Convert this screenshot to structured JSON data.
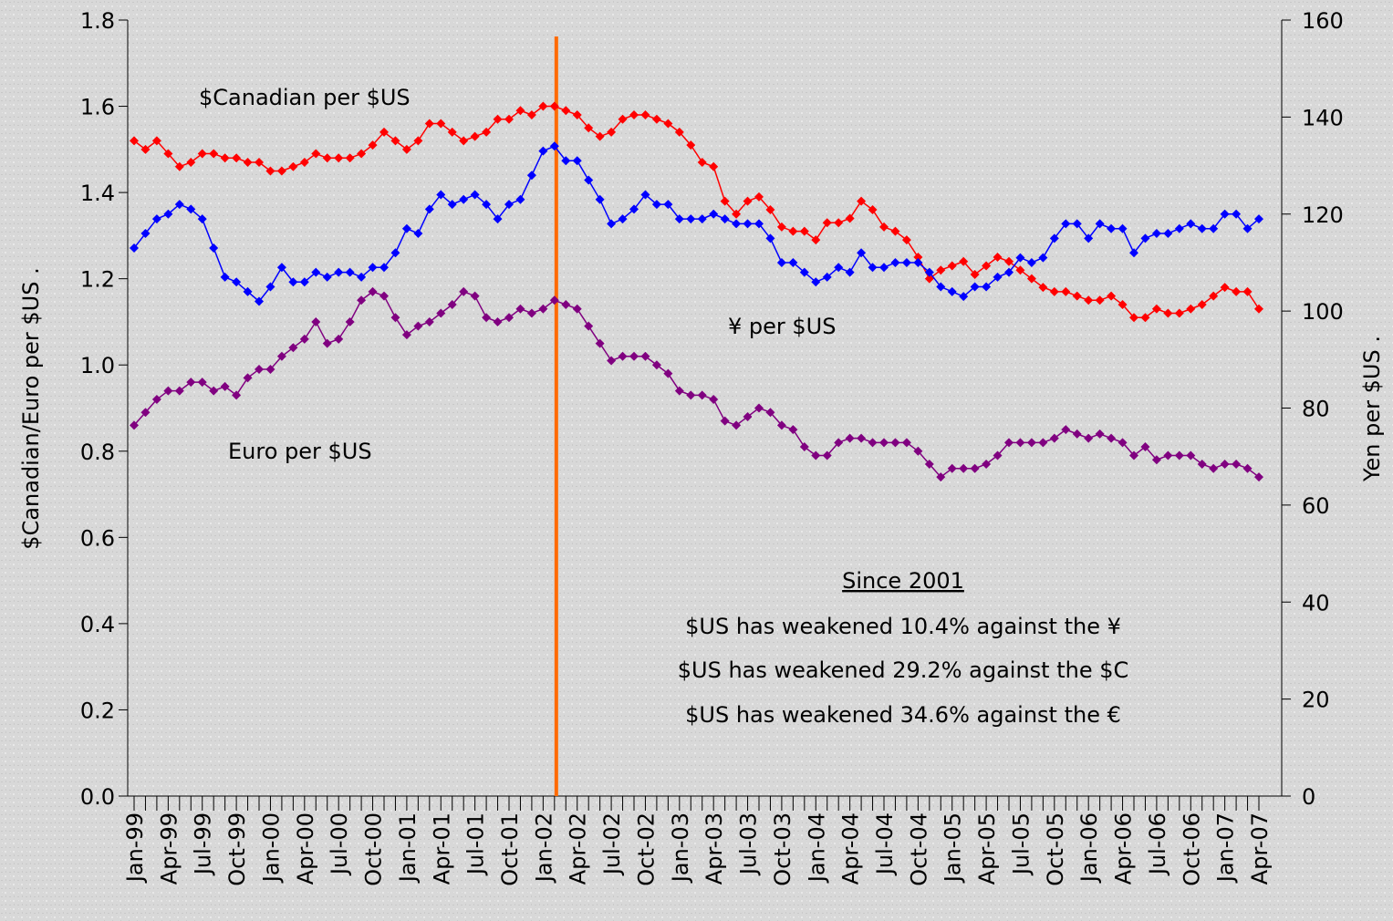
{
  "chart_data": {
    "type": "line",
    "y_label": "$Canadian/Euro per $US .",
    "y2_label": "Yen per $US .",
    "categories": [
      "Jan-99",
      null,
      null,
      "Apr-99",
      null,
      null,
      "Jul-99",
      null,
      null,
      "Oct-99",
      null,
      null,
      "Jan-00",
      null,
      null,
      "Apr-00",
      null,
      null,
      "Jul-00",
      null,
      null,
      "Oct-00",
      null,
      null,
      "Jan-01",
      null,
      null,
      "Apr-01",
      null,
      null,
      "Jul-01",
      null,
      null,
      "Oct-01",
      null,
      null,
      "Jan-02",
      null,
      null,
      "Apr-02",
      null,
      null,
      "Jul-02",
      null,
      null,
      "Oct-02",
      null,
      null,
      "Jan-03",
      null,
      null,
      "Apr-03",
      null,
      null,
      "Jul-03",
      null,
      null,
      "Oct-03",
      null,
      null,
      "Jan-04",
      null,
      null,
      "Apr-04",
      null,
      null,
      "Jul-04",
      null,
      null,
      "Oct-04",
      null,
      null,
      "Jan-05",
      null,
      null,
      "Apr-05",
      null,
      null,
      "Jul-05",
      null,
      null,
      "Oct-05",
      null,
      null,
      "Jan-06",
      null,
      null,
      "Apr-06",
      null,
      null,
      "Jul-06",
      null,
      null,
      "Oct-06",
      null,
      null,
      "Jan-07",
      null,
      null,
      "Apr-07"
    ],
    "series": [
      {
        "name": "$Canadian per $US",
        "color": "#ff0000",
        "values": [
          1.52,
          1.5,
          1.52,
          1.49,
          1.46,
          1.47,
          1.49,
          1.49,
          1.48,
          1.48,
          1.47,
          1.47,
          1.45,
          1.45,
          1.46,
          1.47,
          1.49,
          1.48,
          1.48,
          1.48,
          1.49,
          1.51,
          1.54,
          1.52,
          1.5,
          1.52,
          1.56,
          1.56,
          1.54,
          1.52,
          1.53,
          1.54,
          1.57,
          1.57,
          1.59,
          1.58,
          1.6,
          1.6,
          1.59,
          1.58,
          1.55,
          1.53,
          1.54,
          1.57,
          1.58,
          1.58,
          1.57,
          1.56,
          1.54,
          1.51,
          1.47,
          1.46,
          1.38,
          1.35,
          1.38,
          1.39,
          1.36,
          1.32,
          1.31,
          1.31,
          1.29,
          1.33,
          1.33,
          1.34,
          1.38,
          1.36,
          1.32,
          1.31,
          1.29,
          1.25,
          1.2,
          1.22,
          1.23,
          1.24,
          1.21,
          1.23,
          1.25,
          1.24,
          1.22,
          1.2,
          1.18,
          1.17,
          1.17,
          1.16,
          1.15,
          1.15,
          1.16,
          1.14,
          1.11,
          1.11,
          1.13,
          1.12,
          1.12,
          1.13,
          1.14,
          1.16,
          1.18,
          1.17,
          1.17,
          1.13
        ]
      },
      {
        "name": "Euro per $US",
        "color": "#800080",
        "values": [
          0.86,
          0.89,
          0.92,
          0.94,
          0.94,
          0.96,
          0.96,
          0.94,
          0.95,
          0.93,
          0.97,
          0.99,
          0.99,
          1.02,
          1.04,
          1.06,
          1.1,
          1.05,
          1.06,
          1.1,
          1.15,
          1.17,
          1.16,
          1.11,
          1.07,
          1.09,
          1.1,
          1.12,
          1.14,
          1.17,
          1.16,
          1.11,
          1.1,
          1.11,
          1.13,
          1.12,
          1.13,
          1.15,
          1.14,
          1.13,
          1.09,
          1.05,
          1.01,
          1.02,
          1.02,
          1.02,
          1.0,
          0.98,
          0.94,
          0.93,
          0.93,
          0.92,
          0.87,
          0.86,
          0.88,
          0.9,
          0.89,
          0.86,
          0.85,
          0.81,
          0.79,
          0.79,
          0.82,
          0.83,
          0.83,
          0.82,
          0.82,
          0.82,
          0.82,
          0.8,
          0.77,
          0.74,
          0.76,
          0.76,
          0.76,
          0.77,
          0.79,
          0.82,
          0.82,
          0.82,
          0.82,
          0.83,
          0.85,
          0.84,
          0.83,
          0.84,
          0.83,
          0.82,
          0.79,
          0.81,
          0.78,
          0.79,
          0.79,
          0.79,
          0.77,
          0.76,
          0.77,
          0.77,
          0.76,
          0.74
        ]
      },
      {
        "name": "¥ per $US",
        "color": "#0000ff",
        "axis": "y2",
        "values": [
          113,
          116,
          119,
          120,
          122,
          121,
          119,
          113,
          107,
          106,
          104,
          102,
          105,
          109,
          106,
          106,
          108,
          107,
          108,
          108,
          107,
          109,
          109,
          112,
          117,
          116,
          121,
          124,
          122,
          123,
          124,
          122,
          119,
          122,
          123,
          128,
          133,
          134,
          131,
          131,
          127,
          123,
          118,
          119,
          121,
          124,
          122,
          122,
          119,
          119,
          119,
          120,
          119,
          118,
          118,
          118,
          115,
          110,
          110,
          108,
          106,
          107,
          109,
          108,
          112,
          109,
          109,
          110,
          110,
          110,
          108,
          105,
          104,
          103,
          105,
          105,
          107,
          108,
          111,
          110,
          111,
          115,
          118,
          118,
          115,
          118,
          117,
          117,
          112,
          115,
          116,
          116,
          117,
          118,
          117,
          117,
          120,
          120,
          117,
          119
        ]
      }
    ],
    "annotations": [
      "Since 2001",
      "$US has weakened 10.4% against the ¥",
      "$US has weakened 29.2% against the $C",
      "$US has weakened 34.6% against the €"
    ],
    "ylim": [
      0,
      1.8
    ],
    "yticks": [
      {
        "value": 0,
        "label": "0.0"
      },
      0.2,
      0.4,
      0.6,
      0.8,
      {
        "value": 1,
        "label": "1.0"
      },
      1.2,
      1.4,
      1.6,
      1.8
    ],
    "y2lim": [
      0,
      160
    ],
    "y2ticks": [
      0,
      20,
      40,
      60,
      80,
      100,
      120,
      140,
      160
    ],
    "grid": false
  }
}
